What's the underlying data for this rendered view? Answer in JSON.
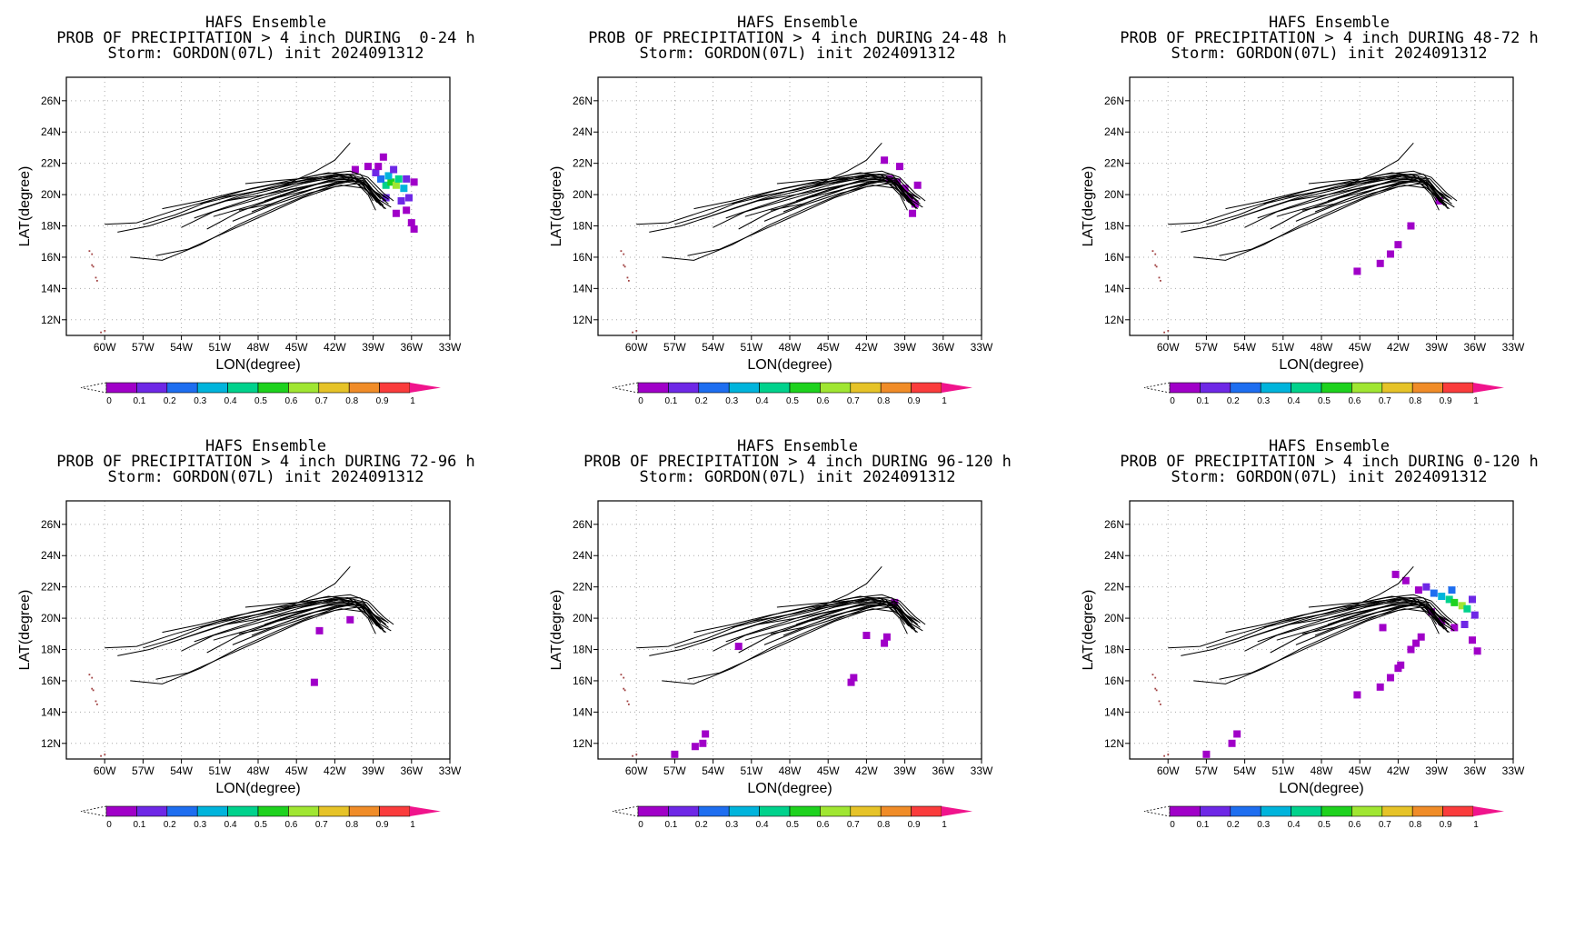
{
  "chart_data": [
    {
      "type": "heatmap",
      "title": "HAFS Ensemble",
      "subtitle": "PROB OF PRECIPITATION > 4 inch DURING  0-24 h",
      "storm_line": "Storm: GORDON(07L) init 2024091312",
      "xlabel": "LON(degree)",
      "ylabel": "LAT(degree)",
      "xlim": [
        -63,
        -33
      ],
      "ylim": [
        11,
        27.5
      ],
      "grid": true,
      "precip_cells": [
        {
          "lon": -38.0,
          "lat": 20.6,
          "p": 0.45
        },
        {
          "lon": -37.6,
          "lat": 20.8,
          "p": 0.55
        },
        {
          "lon": -37.2,
          "lat": 20.6,
          "p": 0.6
        },
        {
          "lon": -37.8,
          "lat": 21.2,
          "p": 0.35
        },
        {
          "lon": -37.0,
          "lat": 21.0,
          "p": 0.4
        },
        {
          "lon": -38.4,
          "lat": 21.0,
          "p": 0.25
        },
        {
          "lon": -36.6,
          "lat": 20.4,
          "p": 0.35
        },
        {
          "lon": -38.8,
          "lat": 21.4,
          "p": 0.12
        },
        {
          "lon": -39.4,
          "lat": 21.8,
          "p": 0.05
        },
        {
          "lon": -38.6,
          "lat": 21.8,
          "p": 0.08
        },
        {
          "lon": -37.4,
          "lat": 21.6,
          "p": 0.15
        },
        {
          "lon": -36.4,
          "lat": 21.0,
          "p": 0.15
        },
        {
          "lon": -36.2,
          "lat": 19.8,
          "p": 0.1
        },
        {
          "lon": -36.8,
          "lat": 19.6,
          "p": 0.12
        },
        {
          "lon": -36.4,
          "lat": 19.0,
          "p": 0.05
        },
        {
          "lon": -36.0,
          "lat": 18.2,
          "p": 0.05
        },
        {
          "lon": -35.8,
          "lat": 17.8,
          "p": 0.05
        },
        {
          "lon": -37.2,
          "lat": 18.8,
          "p": 0.05
        },
        {
          "lon": -38.0,
          "lat": 19.8,
          "p": 0.15
        },
        {
          "lon": -35.8,
          "lat": 20.8,
          "p": 0.08
        },
        {
          "lon": -40.4,
          "lat": 21.6,
          "p": 0.05
        },
        {
          "lon": -38.2,
          "lat": 22.4,
          "p": 0.05
        }
      ]
    },
    {
      "type": "heatmap",
      "title": "HAFS Ensemble",
      "subtitle": "PROB OF PRECIPITATION > 4 inch DURING 24-48 h",
      "storm_line": "Storm: GORDON(07L) init 2024091312",
      "xlabel": "LON(degree)",
      "ylabel": "LAT(degree)",
      "xlim": [
        -63,
        -33
      ],
      "ylim": [
        11,
        27.5
      ],
      "grid": true,
      "precip_cells": [
        {
          "lon": -40.2,
          "lat": 21.0,
          "p": 0.05
        },
        {
          "lon": -39.6,
          "lat": 20.8,
          "p": 0.06
        },
        {
          "lon": -39.0,
          "lat": 20.4,
          "p": 0.07
        },
        {
          "lon": -38.6,
          "lat": 19.8,
          "p": 0.06
        },
        {
          "lon": -38.2,
          "lat": 19.4,
          "p": 0.05
        },
        {
          "lon": -39.4,
          "lat": 21.8,
          "p": 0.05
        },
        {
          "lon": -40.6,
          "lat": 22.2,
          "p": 0.05
        },
        {
          "lon": -38.0,
          "lat": 20.6,
          "p": 0.05
        },
        {
          "lon": -38.4,
          "lat": 18.8,
          "p": 0.05
        }
      ]
    },
    {
      "type": "heatmap",
      "title": "HAFS Ensemble",
      "subtitle": "PROB OF PRECIPITATION > 4 inch DURING 48-72 h",
      "storm_line": "Storm: GORDON(07L) init 2024091312",
      "xlabel": "LON(degree)",
      "ylabel": "LAT(degree)",
      "xlim": [
        -63,
        -33
      ],
      "ylim": [
        11,
        27.5
      ],
      "grid": true,
      "precip_cells": [
        {
          "lon": -38.8,
          "lat": 19.6,
          "p": 0.05
        },
        {
          "lon": -41.0,
          "lat": 18.0,
          "p": 0.05
        },
        {
          "lon": -42.0,
          "lat": 16.8,
          "p": 0.05
        },
        {
          "lon": -42.6,
          "lat": 16.2,
          "p": 0.05
        },
        {
          "lon": -43.4,
          "lat": 15.6,
          "p": 0.05
        },
        {
          "lon": -45.2,
          "lat": 15.1,
          "p": 0.05
        }
      ]
    },
    {
      "type": "heatmap",
      "title": "HAFS Ensemble",
      "subtitle": "PROB OF PRECIPITATION > 4 inch DURING 72-96 h",
      "storm_line": "Storm: GORDON(07L) init 2024091312",
      "xlabel": "LON(degree)",
      "ylabel": "LAT(degree)",
      "xlim": [
        -63,
        -33
      ],
      "ylim": [
        11,
        27.5
      ],
      "grid": true,
      "precip_cells": [
        {
          "lon": -40.8,
          "lat": 19.9,
          "p": 0.05
        },
        {
          "lon": -43.2,
          "lat": 19.2,
          "p": 0.05
        },
        {
          "lon": -43.6,
          "lat": 15.9,
          "p": 0.05
        }
      ]
    },
    {
      "type": "heatmap",
      "title": "HAFS Ensemble",
      "subtitle": "PROB OF PRECIPITATION > 4 inch DURING 96-120 h",
      "storm_line": "Storm: GORDON(07L) init 2024091312",
      "xlabel": "LON(degree)",
      "ylabel": "LAT(degree)",
      "xlim": [
        -63,
        -33
      ],
      "ylim": [
        11,
        27.5
      ],
      "grid": true,
      "precip_cells": [
        {
          "lon": -39.8,
          "lat": 21.0,
          "p": 0.05
        },
        {
          "lon": -40.4,
          "lat": 18.8,
          "p": 0.05
        },
        {
          "lon": -40.6,
          "lat": 18.4,
          "p": 0.05
        },
        {
          "lon": -42.0,
          "lat": 18.9,
          "p": 0.05
        },
        {
          "lon": -43.0,
          "lat": 16.2,
          "p": 0.05
        },
        {
          "lon": -43.2,
          "lat": 15.9,
          "p": 0.05
        },
        {
          "lon": -54.6,
          "lat": 12.6,
          "p": 0.05
        },
        {
          "lon": -54.8,
          "lat": 12.0,
          "p": 0.05
        },
        {
          "lon": -55.4,
          "lat": 11.8,
          "p": 0.05
        },
        {
          "lon": -57.0,
          "lat": 11.3,
          "p": 0.05
        },
        {
          "lon": -52.0,
          "lat": 18.2,
          "p": 0.05
        }
      ]
    },
    {
      "type": "heatmap",
      "title": "HAFS Ensemble",
      "subtitle": "PROB OF PRECIPITATION > 4 inch DURING 0-120 h",
      "storm_line": "Storm: GORDON(07L) init 2024091312",
      "xlabel": "LON(degree)",
      "ylabel": "LAT(degree)",
      "xlim": [
        -63,
        -33
      ],
      "ylim": [
        11,
        27.5
      ],
      "grid": true,
      "precip_cells": [
        {
          "lon": -38.0,
          "lat": 21.2,
          "p": 0.45
        },
        {
          "lon": -37.6,
          "lat": 21.0,
          "p": 0.55
        },
        {
          "lon": -37.0,
          "lat": 20.8,
          "p": 0.6
        },
        {
          "lon": -38.6,
          "lat": 21.4,
          "p": 0.35
        },
        {
          "lon": -36.6,
          "lat": 20.6,
          "p": 0.4
        },
        {
          "lon": -39.2,
          "lat": 21.6,
          "p": 0.25
        },
        {
          "lon": -37.8,
          "lat": 21.8,
          "p": 0.2
        },
        {
          "lon": -39.8,
          "lat": 22.0,
          "p": 0.12
        },
        {
          "lon": -40.4,
          "lat": 21.8,
          "p": 0.08
        },
        {
          "lon": -36.2,
          "lat": 21.2,
          "p": 0.15
        },
        {
          "lon": -36.0,
          "lat": 20.2,
          "p": 0.12
        },
        {
          "lon": -36.8,
          "lat": 19.6,
          "p": 0.1
        },
        {
          "lon": -36.2,
          "lat": 18.6,
          "p": 0.05
        },
        {
          "lon": -35.8,
          "lat": 17.9,
          "p": 0.05
        },
        {
          "lon": -37.6,
          "lat": 19.4,
          "p": 0.06
        },
        {
          "lon": -38.6,
          "lat": 19.8,
          "p": 0.08
        },
        {
          "lon": -39.4,
          "lat": 20.4,
          "p": 0.06
        },
        {
          "lon": -40.2,
          "lat": 18.8,
          "p": 0.05
        },
        {
          "lon": -40.6,
          "lat": 18.4,
          "p": 0.05
        },
        {
          "lon": -41.0,
          "lat": 18.0,
          "p": 0.05
        },
        {
          "lon": -42.0,
          "lat": 16.8,
          "p": 0.05
        },
        {
          "lon": -42.6,
          "lat": 16.2,
          "p": 0.05
        },
        {
          "lon": -43.4,
          "lat": 15.6,
          "p": 0.05
        },
        {
          "lon": -45.2,
          "lat": 15.1,
          "p": 0.05
        },
        {
          "lon": -42.2,
          "lat": 22.8,
          "p": 0.05
        },
        {
          "lon": -41.4,
          "lat": 22.4,
          "p": 0.05
        },
        {
          "lon": -54.6,
          "lat": 12.6,
          "p": 0.05
        },
        {
          "lon": -55.0,
          "lat": 12.0,
          "p": 0.05
        },
        {
          "lon": -57.0,
          "lat": 11.3,
          "p": 0.05
        },
        {
          "lon": -43.2,
          "lat": 19.4,
          "p": 0.05
        },
        {
          "lon": -41.8,
          "lat": 17.0,
          "p": 0.05
        }
      ]
    }
  ],
  "axes": {
    "x_ticks": [
      -60,
      -57,
      -54,
      -51,
      -48,
      -45,
      -42,
      -39,
      -36,
      -33
    ],
    "x_tick_labels": [
      "60W",
      "57W",
      "54W",
      "51W",
      "48W",
      "45W",
      "42W",
      "39W",
      "36W",
      "33W"
    ],
    "y_ticks": [
      12,
      14,
      16,
      18,
      20,
      22,
      24,
      26
    ],
    "y_tick_labels": [
      "12N",
      "14N",
      "16N",
      "18N",
      "20N",
      "22N",
      "24N",
      "26N"
    ]
  },
  "ensemble_tracks": {
    "color": "#000000",
    "members": [
      [
        [
          -60.0,
          18.1
        ],
        [
          -57.5,
          18.2
        ],
        [
          -54.5,
          19.0
        ],
        [
          -51.0,
          19.8
        ],
        [
          -47.5,
          20.3
        ],
        [
          -44.5,
          20.9
        ],
        [
          -42.0,
          21.3
        ],
        [
          -40.0,
          21.3
        ],
        [
          -39.0,
          20.3
        ],
        [
          -38.0,
          19.6
        ]
      ],
      [
        [
          -59.0,
          17.6
        ],
        [
          -56.5,
          18.0
        ],
        [
          -53.5,
          18.8
        ],
        [
          -50.5,
          19.6
        ],
        [
          -47.5,
          20.2
        ],
        [
          -44.5,
          20.8
        ],
        [
          -42.0,
          21.2
        ],
        [
          -40.2,
          21.0
        ],
        [
          -39.2,
          20.0
        ],
        [
          -38.4,
          19.3
        ]
      ],
      [
        [
          -57.0,
          18.1
        ],
        [
          -54.5,
          18.7
        ],
        [
          -51.5,
          19.7
        ],
        [
          -48.5,
          20.4
        ],
        [
          -45.5,
          20.9
        ],
        [
          -42.5,
          21.4
        ],
        [
          -40.5,
          21.2
        ],
        [
          -39.4,
          20.2
        ],
        [
          -38.5,
          19.5
        ]
      ],
      [
        [
          -55.0,
          18.4
        ],
        [
          -52.5,
          19.1
        ],
        [
          -49.5,
          19.9
        ],
        [
          -46.5,
          20.6
        ],
        [
          -43.5,
          21.1
        ],
        [
          -41.0,
          21.3
        ],
        [
          -39.6,
          20.6
        ],
        [
          -38.6,
          19.7
        ],
        [
          -37.6,
          19.2
        ]
      ],
      [
        [
          -54.0,
          17.9
        ],
        [
          -51.5,
          18.9
        ],
        [
          -48.5,
          19.6
        ],
        [
          -45.5,
          20.3
        ],
        [
          -42.5,
          20.8
        ],
        [
          -40.5,
          20.9
        ],
        [
          -39.4,
          20.0
        ],
        [
          -38.8,
          19.0
        ]
      ],
      [
        [
          -53.0,
          18.5
        ],
        [
          -50.5,
          19.2
        ],
        [
          -47.5,
          20.0
        ],
        [
          -44.5,
          20.7
        ],
        [
          -41.5,
          21.2
        ],
        [
          -39.8,
          21.0
        ],
        [
          -38.7,
          20.0
        ],
        [
          -37.8,
          19.4
        ]
      ],
      [
        [
          -52.0,
          17.8
        ],
        [
          -49.5,
          18.9
        ],
        [
          -46.5,
          19.8
        ],
        [
          -43.5,
          20.4
        ],
        [
          -41.0,
          20.8
        ],
        [
          -39.5,
          20.6
        ],
        [
          -38.5,
          19.6
        ]
      ],
      [
        [
          -51.5,
          18.6
        ],
        [
          -48.5,
          19.3
        ],
        [
          -45.5,
          20.1
        ],
        [
          -42.5,
          20.9
        ],
        [
          -40.4,
          21.0
        ],
        [
          -39.2,
          20.4
        ],
        [
          -38.3,
          19.8
        ]
      ],
      [
        [
          -50.5,
          19.6
        ],
        [
          -47.5,
          20.0
        ],
        [
          -44.5,
          20.5
        ],
        [
          -41.5,
          21.0
        ],
        [
          -39.8,
          20.8
        ],
        [
          -38.9,
          19.8
        ],
        [
          -38.1,
          19.1
        ]
      ],
      [
        [
          -50.0,
          18.3
        ],
        [
          -47.0,
          19.3
        ],
        [
          -44.0,
          20.1
        ],
        [
          -41.5,
          20.6
        ],
        [
          -39.6,
          20.4
        ],
        [
          -38.7,
          19.5
        ]
      ],
      [
        [
          -49.0,
          20.7
        ],
        [
          -46.5,
          20.9
        ],
        [
          -43.5,
          21.1
        ],
        [
          -41.0,
          21.3
        ],
        [
          -39.5,
          21.0
        ],
        [
          -38.6,
          20.2
        ],
        [
          -37.8,
          19.7
        ]
      ],
      [
        [
          -48.5,
          18.9
        ],
        [
          -46.0,
          19.7
        ],
        [
          -43.5,
          20.4
        ],
        [
          -41.0,
          20.9
        ],
        [
          -39.6,
          20.7
        ],
        [
          -38.8,
          19.9
        ]
      ],
      [
        [
          -58.0,
          16.0
        ],
        [
          -55.5,
          15.8
        ],
        [
          -52.5,
          16.8
        ],
        [
          -49.5,
          18.1
        ],
        [
          -46.5,
          19.2
        ],
        [
          -43.5,
          20.2
        ],
        [
          -41.0,
          20.9
        ],
        [
          -39.5,
          20.8
        ],
        [
          -38.8,
          19.6
        ],
        [
          -38.0,
          19.1
        ]
      ],
      [
        [
          -56.0,
          16.1
        ],
        [
          -53.5,
          16.5
        ],
        [
          -50.5,
          17.6
        ],
        [
          -47.5,
          18.7
        ],
        [
          -44.5,
          19.8
        ],
        [
          -42.0,
          20.5
        ],
        [
          -40.2,
          20.7
        ],
        [
          -39.0,
          19.9
        ],
        [
          -38.2,
          19.3
        ]
      ],
      [
        [
          -46.0,
          20.6
        ],
        [
          -43.5,
          21.5
        ],
        [
          -42.0,
          22.2
        ],
        [
          -40.8,
          23.3
        ]
      ],
      [
        [
          -47.5,
          19.6
        ],
        [
          -45.0,
          20.3
        ],
        [
          -42.5,
          20.9
        ],
        [
          -40.6,
          21.1
        ],
        [
          -39.3,
          20.5
        ],
        [
          -38.4,
          19.7
        ]
      ],
      [
        [
          -45.5,
          20.9
        ],
        [
          -43.0,
          21.3
        ],
        [
          -40.8,
          21.5
        ],
        [
          -39.4,
          21.1
        ],
        [
          -38.2,
          20.1
        ],
        [
          -37.4,
          19.6
        ]
      ],
      [
        [
          -52.5,
          19.4
        ],
        [
          -49.5,
          20.0
        ],
        [
          -46.5,
          20.5
        ],
        [
          -43.5,
          20.9
        ],
        [
          -41.2,
          21.1
        ],
        [
          -39.8,
          20.7
        ],
        [
          -39.0,
          19.6
        ]
      ],
      [
        [
          -55.5,
          19.1
        ],
        [
          -52.5,
          19.6
        ],
        [
          -49.5,
          20.2
        ],
        [
          -46.5,
          20.7
        ],
        [
          -43.5,
          21.0
        ],
        [
          -41.3,
          21.2
        ],
        [
          -39.8,
          20.9
        ],
        [
          -38.9,
          19.9
        ],
        [
          -38.2,
          19.3
        ]
      ],
      [
        [
          -49.5,
          19.0
        ],
        [
          -47.0,
          19.4
        ],
        [
          -44.0,
          20.3
        ],
        [
          -41.8,
          20.8
        ],
        [
          -40.0,
          20.9
        ],
        [
          -38.9,
          20.2
        ],
        [
          -38.0,
          19.8
        ]
      ]
    ]
  },
  "islands": {
    "color": "#a04040",
    "points": [
      [
        -61.2,
        16.4
      ],
      [
        -61.0,
        16.2
      ],
      [
        -61.0,
        15.5
      ],
      [
        -60.9,
        15.4
      ],
      [
        -60.7,
        14.7
      ],
      [
        -60.6,
        14.5
      ],
      [
        -60.3,
        11.2
      ],
      [
        -60.0,
        11.3
      ]
    ]
  },
  "colorbar": {
    "ticks": [
      "0",
      "0.1",
      "0.2",
      "0.3",
      "0.4",
      "0.5",
      "0.6",
      "0.7",
      "0.8",
      "0.9",
      "1"
    ],
    "colors": [
      "#a000c8",
      "#6e28e6",
      "#1e6ef0",
      "#00b4dc",
      "#00d28c",
      "#1ed21e",
      "#a0e632",
      "#e6c328",
      "#f08c28",
      "#fa3c3c"
    ],
    "over_color": "#f0148c",
    "under_color": "#ffffff"
  }
}
